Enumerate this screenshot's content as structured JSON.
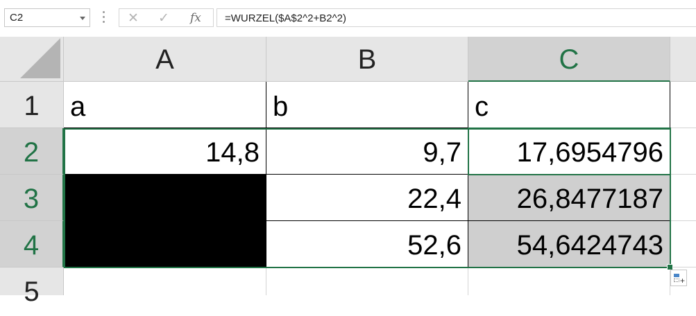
{
  "formula_bar": {
    "name_box": "C2",
    "cancel_icon": "✕",
    "enter_icon": "✓",
    "fx_label": "fx",
    "formula": "=WURZEL($A$2^2+B2^2)"
  },
  "columns": [
    "A",
    "B",
    "C"
  ],
  "rows": [
    "1",
    "2",
    "3",
    "4",
    "5"
  ],
  "cells": {
    "A1": "a",
    "B1": "b",
    "C1": "c",
    "A2": "14,8",
    "B2": "9,7",
    "C2": "17,6954796",
    "A3": "",
    "B3": "22,4",
    "C3": "26,8477187",
    "A4": "",
    "B4": "52,6",
    "C4": "54,6424743"
  },
  "colors": {
    "accent": "#217346",
    "header_bg": "#e6e6e6",
    "selected_bg": "#cfcfcf",
    "blackout": "#000000"
  },
  "icons": {
    "namebox_dropdown": "chevron-down-icon",
    "cancel": "close-icon",
    "enter": "check-icon",
    "function": "fx-icon",
    "quick_analysis": "quick-analysis-icon"
  }
}
